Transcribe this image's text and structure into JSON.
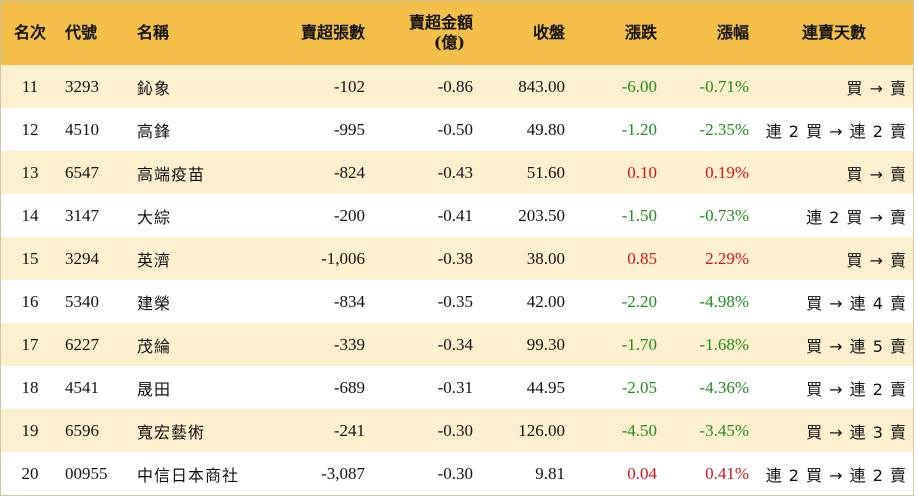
{
  "headers": {
    "rank": "名次",
    "code": "代號",
    "name": "名稱",
    "sell_lots": "賣超張數",
    "sell_amount_line1": "賣超金額",
    "sell_amount_line2": "(億)",
    "close": "收盤",
    "change": "漲跌",
    "change_pct": "漲幅",
    "streak": "連賣天數"
  },
  "rows": [
    {
      "rank": "11",
      "code": "3293",
      "name": "鈊象",
      "sell_lots": "-102",
      "sell_amount": "-0.86",
      "close": "843.00",
      "change": "-6.00",
      "change_pct": "-0.71%",
      "streak": "買 → 賣",
      "direction": "down"
    },
    {
      "rank": "12",
      "code": "4510",
      "name": "高鋒",
      "sell_lots": "-995",
      "sell_amount": "-0.50",
      "close": "49.80",
      "change": "-1.20",
      "change_pct": "-2.35%",
      "streak": "連 2 買 → 連 2 賣",
      "direction": "down"
    },
    {
      "rank": "13",
      "code": "6547",
      "name": "高端疫苗",
      "sell_lots": "-824",
      "sell_amount": "-0.43",
      "close": "51.60",
      "change": "0.10",
      "change_pct": "0.19%",
      "streak": "買 → 賣",
      "direction": "up"
    },
    {
      "rank": "14",
      "code": "3147",
      "name": "大綜",
      "sell_lots": "-200",
      "sell_amount": "-0.41",
      "close": "203.50",
      "change": "-1.50",
      "change_pct": "-0.73%",
      "streak": "連 2 買 → 賣",
      "direction": "down"
    },
    {
      "rank": "15",
      "code": "3294",
      "name": "英濟",
      "sell_lots": "-1,006",
      "sell_amount": "-0.38",
      "close": "38.00",
      "change": "0.85",
      "change_pct": "2.29%",
      "streak": "買 → 賣",
      "direction": "up"
    },
    {
      "rank": "16",
      "code": "5340",
      "name": "建榮",
      "sell_lots": "-834",
      "sell_amount": "-0.35",
      "close": "42.00",
      "change": "-2.20",
      "change_pct": "-4.98%",
      "streak": "買 → 連 4 賣",
      "direction": "down"
    },
    {
      "rank": "17",
      "code": "6227",
      "name": "茂綸",
      "sell_lots": "-339",
      "sell_amount": "-0.34",
      "close": "99.30",
      "change": "-1.70",
      "change_pct": "-1.68%",
      "streak": "買 → 連 5 賣",
      "direction": "down"
    },
    {
      "rank": "18",
      "code": "4541",
      "name": "晟田",
      "sell_lots": "-689",
      "sell_amount": "-0.31",
      "close": "44.95",
      "change": "-2.05",
      "change_pct": "-4.36%",
      "streak": "買 → 連 2 賣",
      "direction": "down"
    },
    {
      "rank": "19",
      "code": "6596",
      "name": "寬宏藝術",
      "sell_lots": "-241",
      "sell_amount": "-0.30",
      "close": "126.00",
      "change": "-4.50",
      "change_pct": "-3.45%",
      "streak": "買 → 連 3 賣",
      "direction": "down"
    },
    {
      "rank": "20",
      "code": "00955",
      "name": "中信日本商社",
      "sell_lots": "-3,087",
      "sell_amount": "-0.30",
      "close": "9.81",
      "change": "0.04",
      "change_pct": "0.41%",
      "streak": "連 2 買 → 連 2 賣",
      "direction": "up"
    }
  ],
  "colors": {
    "header_bg": "#f5c04a",
    "odd_row_bg": "#fdf0cf",
    "even_row_bg": "#ffffff",
    "down": "#1f8a1f",
    "up": "#d2121e"
  }
}
